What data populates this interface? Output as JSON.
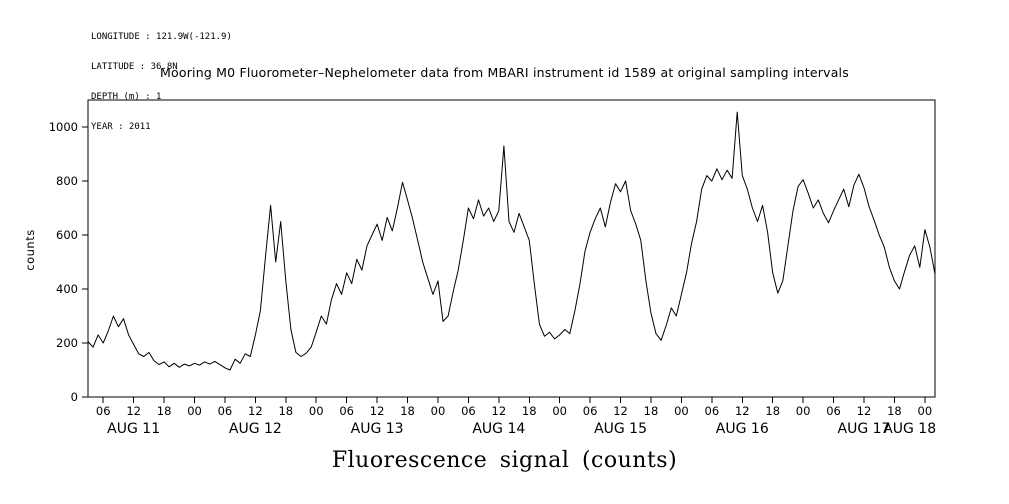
{
  "meta": {
    "longitude": "LONGITUDE : 121.9W(-121.9)",
    "latitude": "LATITUDE : 36.8N",
    "depth": "DEPTH (m) : 1",
    "year": "YEAR : 2011"
  },
  "title": "Mooring M0 Fluorometer–Nephelometer data from MBARI instrument id 1589 at original sampling intervals",
  "axis": {
    "ylabel": "counts",
    "xlabel": "Fluorescence signal (counts)"
  },
  "chart_data": {
    "type": "line",
    "title": "Mooring M0 Fluorometer–Nephelometer data from MBARI instrument id 1589 at original sampling intervals",
    "ylabel": "counts",
    "xlabel": "Fluorescence signal (counts)",
    "x_unit": "hours since 2011-08-11 00:00",
    "x_range": [
      3,
      170
    ],
    "ylim": [
      0,
      1100
    ],
    "grid": false,
    "legend": "none",
    "line_color": "#000000",
    "yticks": [
      [
        0,
        "0"
      ],
      [
        200,
        "200"
      ],
      [
        400,
        "400"
      ],
      [
        600,
        "600"
      ],
      [
        800,
        "800"
      ],
      [
        1000,
        "1000"
      ]
    ],
    "xticks": [
      [
        6,
        "06"
      ],
      [
        12,
        "12"
      ],
      [
        18,
        "18"
      ],
      [
        24,
        "00"
      ],
      [
        30,
        "06"
      ],
      [
        36,
        "12"
      ],
      [
        42,
        "18"
      ],
      [
        48,
        "00"
      ],
      [
        54,
        "06"
      ],
      [
        60,
        "12"
      ],
      [
        66,
        "18"
      ],
      [
        72,
        "00"
      ],
      [
        78,
        "06"
      ],
      [
        84,
        "12"
      ],
      [
        90,
        "18"
      ],
      [
        96,
        "00"
      ],
      [
        102,
        "06"
      ],
      [
        108,
        "12"
      ],
      [
        114,
        "18"
      ],
      [
        120,
        "00"
      ],
      [
        126,
        "06"
      ],
      [
        132,
        "12"
      ],
      [
        138,
        "18"
      ],
      [
        144,
        "00"
      ],
      [
        150,
        "06"
      ],
      [
        156,
        "12"
      ],
      [
        162,
        "18"
      ],
      [
        168,
        "00"
      ]
    ],
    "day_labels": [
      [
        12,
        "AUG 11"
      ],
      [
        36,
        "AUG 12"
      ],
      [
        60,
        "AUG 13"
      ],
      [
        84,
        "AUG 14"
      ],
      [
        108,
        "AUG 15"
      ],
      [
        132,
        "AUG 16"
      ],
      [
        156,
        "AUG 17"
      ],
      [
        165,
        "AUG 18"
      ]
    ],
    "series": [
      {
        "name": "fluorescence_counts",
        "x_start": 3,
        "x_step": 1,
        "y": [
          205,
          185,
          230,
          200,
          245,
          300,
          260,
          290,
          230,
          195,
          160,
          150,
          165,
          135,
          120,
          130,
          112,
          125,
          110,
          122,
          115,
          125,
          118,
          130,
          122,
          132,
          120,
          108,
          100,
          140,
          125,
          160,
          150,
          230,
          320,
          520,
          710,
          500,
          650,
          430,
          250,
          165,
          150,
          162,
          185,
          240,
          300,
          270,
          360,
          420,
          380,
          460,
          420,
          510,
          470,
          560,
          600,
          640,
          580,
          665,
          615,
          700,
          795,
          730,
          660,
          580,
          500,
          440,
          380,
          430,
          280,
          300,
          390,
          470,
          580,
          700,
          660,
          730,
          670,
          700,
          650,
          690,
          930,
          650,
          610,
          680,
          630,
          580,
          420,
          270,
          225,
          240,
          215,
          230,
          250,
          235,
          320,
          420,
          540,
          610,
          660,
          700,
          630,
          720,
          790,
          760,
          800,
          690,
          640,
          580,
          430,
          310,
          235,
          210,
          265,
          330,
          300,
          380,
          460,
          570,
          650,
          770,
          820,
          800,
          845,
          805,
          840,
          810,
          1055,
          820,
          770,
          700,
          650,
          710,
          610,
          460,
          385,
          430,
          560,
          690,
          780,
          805,
          755,
          700,
          730,
          680,
          645,
          690,
          730,
          770,
          705,
          785,
          825,
          775,
          705,
          655,
          600,
          555,
          480,
          430,
          400,
          465,
          525,
          560,
          480,
          620,
          555,
          455
        ]
      }
    ]
  }
}
